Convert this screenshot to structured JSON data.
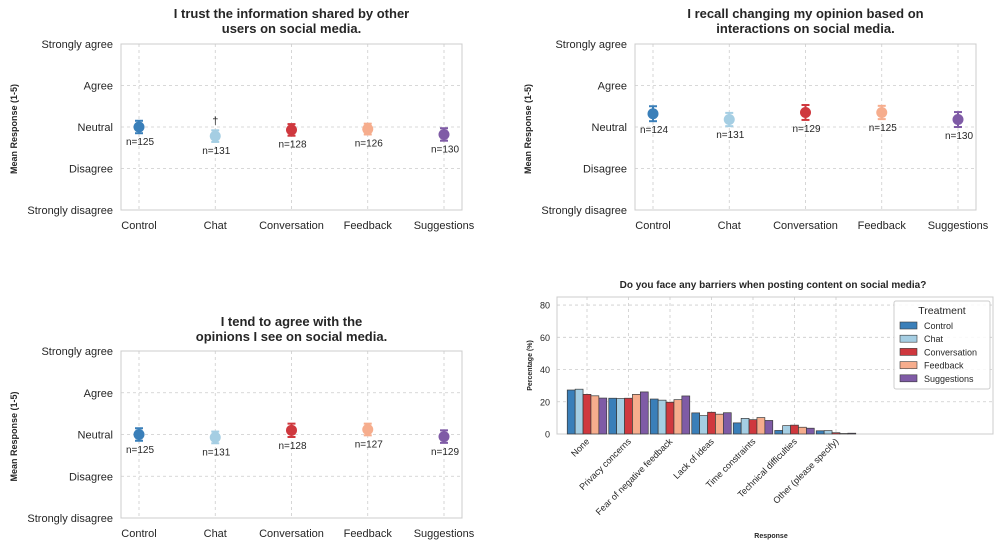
{
  "colors": {
    "Control": "#3a7fb9",
    "Chat": "#a5cee3",
    "Conversation": "#cf383e",
    "Feedback": "#f6ad8d",
    "Suggestions": "#7f5ba6"
  },
  "chart_data": [
    {
      "type": "scatter",
      "title": "I trust the information shared by other\nusers on social media.",
      "ylabel": "Mean Response (1-5)",
      "ylim": [
        1,
        5
      ],
      "yticks": [
        "Strongly disagree",
        "Disagree",
        "Neutral",
        "Agree",
        "Strongly agree"
      ],
      "categories": [
        "Control",
        "Chat",
        "Conversation",
        "Feedback",
        "Suggestions"
      ],
      "values": [
        3.0,
        2.78,
        2.93,
        2.95,
        2.82
      ],
      "err_low": [
        2.85,
        2.64,
        2.79,
        2.82,
        2.67
      ],
      "err_high": [
        3.15,
        2.92,
        3.07,
        3.08,
        2.97
      ],
      "n_labels": [
        "n=125",
        "n=131",
        "n=128",
        "n=126",
        "n=130"
      ],
      "annotations": [
        {
          "category": "Chat",
          "text": "†"
        }
      ]
    },
    {
      "type": "scatter",
      "title": "I recall changing my opinion based on\ninteractions on social media.",
      "ylabel": "Mean Response (1-5)",
      "ylim": [
        1,
        5
      ],
      "yticks": [
        "Strongly disagree",
        "Disagree",
        "Neutral",
        "Agree",
        "Strongly agree"
      ],
      "categories": [
        "Control",
        "Chat",
        "Conversation",
        "Feedback",
        "Suggestions"
      ],
      "values": [
        3.32,
        3.18,
        3.35,
        3.35,
        3.18
      ],
      "err_low": [
        3.14,
        3.02,
        3.17,
        3.19,
        3.0
      ],
      "err_high": [
        3.5,
        3.34,
        3.53,
        3.51,
        3.36
      ],
      "n_labels": [
        "n=124",
        "n=131",
        "n=129",
        "n=125",
        "n=130"
      ],
      "annotations": []
    },
    {
      "type": "scatter",
      "title": "I tend to agree with the\nopinions I see on social media.",
      "ylabel": "Mean Response (1-5)",
      "ylim": [
        1,
        5
      ],
      "yticks": [
        "Strongly disagree",
        "Disagree",
        "Neutral",
        "Agree",
        "Strongly agree"
      ],
      "categories": [
        "Control",
        "Chat",
        "Conversation",
        "Feedback",
        "Suggestions"
      ],
      "values": [
        3.0,
        2.93,
        3.1,
        3.12,
        2.95
      ],
      "err_low": [
        2.85,
        2.79,
        2.94,
        2.98,
        2.8
      ],
      "err_high": [
        3.15,
        3.07,
        3.26,
        3.26,
        3.1
      ],
      "n_labels": [
        "n=125",
        "n=131",
        "n=128",
        "n=127",
        "n=129"
      ],
      "annotations": []
    },
    {
      "type": "bar",
      "title": "Do you face any barriers when posting content on social media?",
      "xlabel": "Response",
      "ylabel": "Percentage (%)",
      "ylim": [
        0,
        85
      ],
      "yticks": [
        0,
        20,
        40,
        60,
        80
      ],
      "categories": [
        "None",
        "Privacy concerns",
        "Fear of negative feedback",
        "Lack of ideas",
        "Time constraints",
        "Technical difficulties",
        "Other (please specify)"
      ],
      "series": [
        {
          "name": "Control",
          "values": [
            27.3,
            22.2,
            21.7,
            13.1,
            6.9,
            2.2,
            2.0
          ]
        },
        {
          "name": "Chat",
          "values": [
            27.8,
            22.0,
            21.0,
            11.4,
            9.7,
            5.2,
            2.1
          ]
        },
        {
          "name": "Conversation",
          "values": [
            24.6,
            22.2,
            19.7,
            13.5,
            8.9,
            5.5,
            0.8
          ]
        },
        {
          "name": "Feedback",
          "values": [
            23.7,
            24.6,
            21.3,
            12.3,
            10.2,
            4.2,
            0.3
          ]
        },
        {
          "name": "Suggestions",
          "values": [
            22.3,
            26.1,
            23.6,
            13.2,
            8.4,
            3.6,
            0.5
          ]
        }
      ],
      "legend": {
        "title": "Treatment",
        "position": "top-right"
      },
      "grid": true
    }
  ]
}
